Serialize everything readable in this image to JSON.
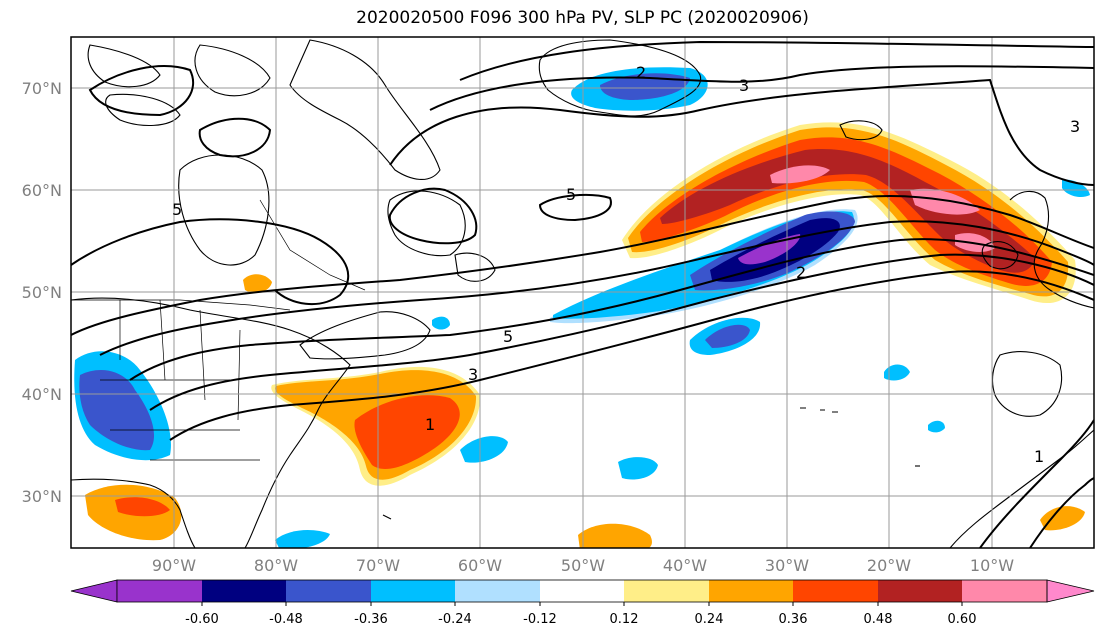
{
  "title": "2020020500 F096 300 hPa PV, SLP PC (2020020906)",
  "map": {
    "lat_labels": [
      "70°N",
      "60°N",
      "50°N",
      "40°N",
      "30°N"
    ],
    "lon_labels": [
      "90°W",
      "80°W",
      "70°W",
      "60°W",
      "50°W",
      "40°W",
      "30°W",
      "20°W",
      "10°W"
    ],
    "contour_labels": [
      "2",
      "3",
      "3",
      "5",
      "5",
      "5",
      "3",
      "1",
      "2",
      "1"
    ]
  },
  "colorbar": {
    "labels": [
      "-0.60",
      "-0.48",
      "-0.36",
      "-0.24",
      "-0.12",
      "0.12",
      "0.24",
      "0.36",
      "0.48",
      "0.60"
    ],
    "colors": [
      "#9933cc",
      "#000080",
      "#3a55cc",
      "#00bfff",
      "#b0e0ff",
      "#ffffff",
      "#ffee88",
      "#ffa500",
      "#ff4500",
      "#b22222",
      "#ff88aa",
      "#ff88cc"
    ]
  },
  "colors": {
    "neg_strong": "#9933cc",
    "neg_navy": "#000080",
    "neg_blue": "#3a55cc",
    "neg_sky": "#00bfff",
    "neg_light": "#b0e0ff",
    "pos_yellow": "#ffee88",
    "pos_orange": "#ffa500",
    "pos_red": "#ff4500",
    "pos_dark": "#b22222",
    "pos_pink": "#ff88aa"
  }
}
